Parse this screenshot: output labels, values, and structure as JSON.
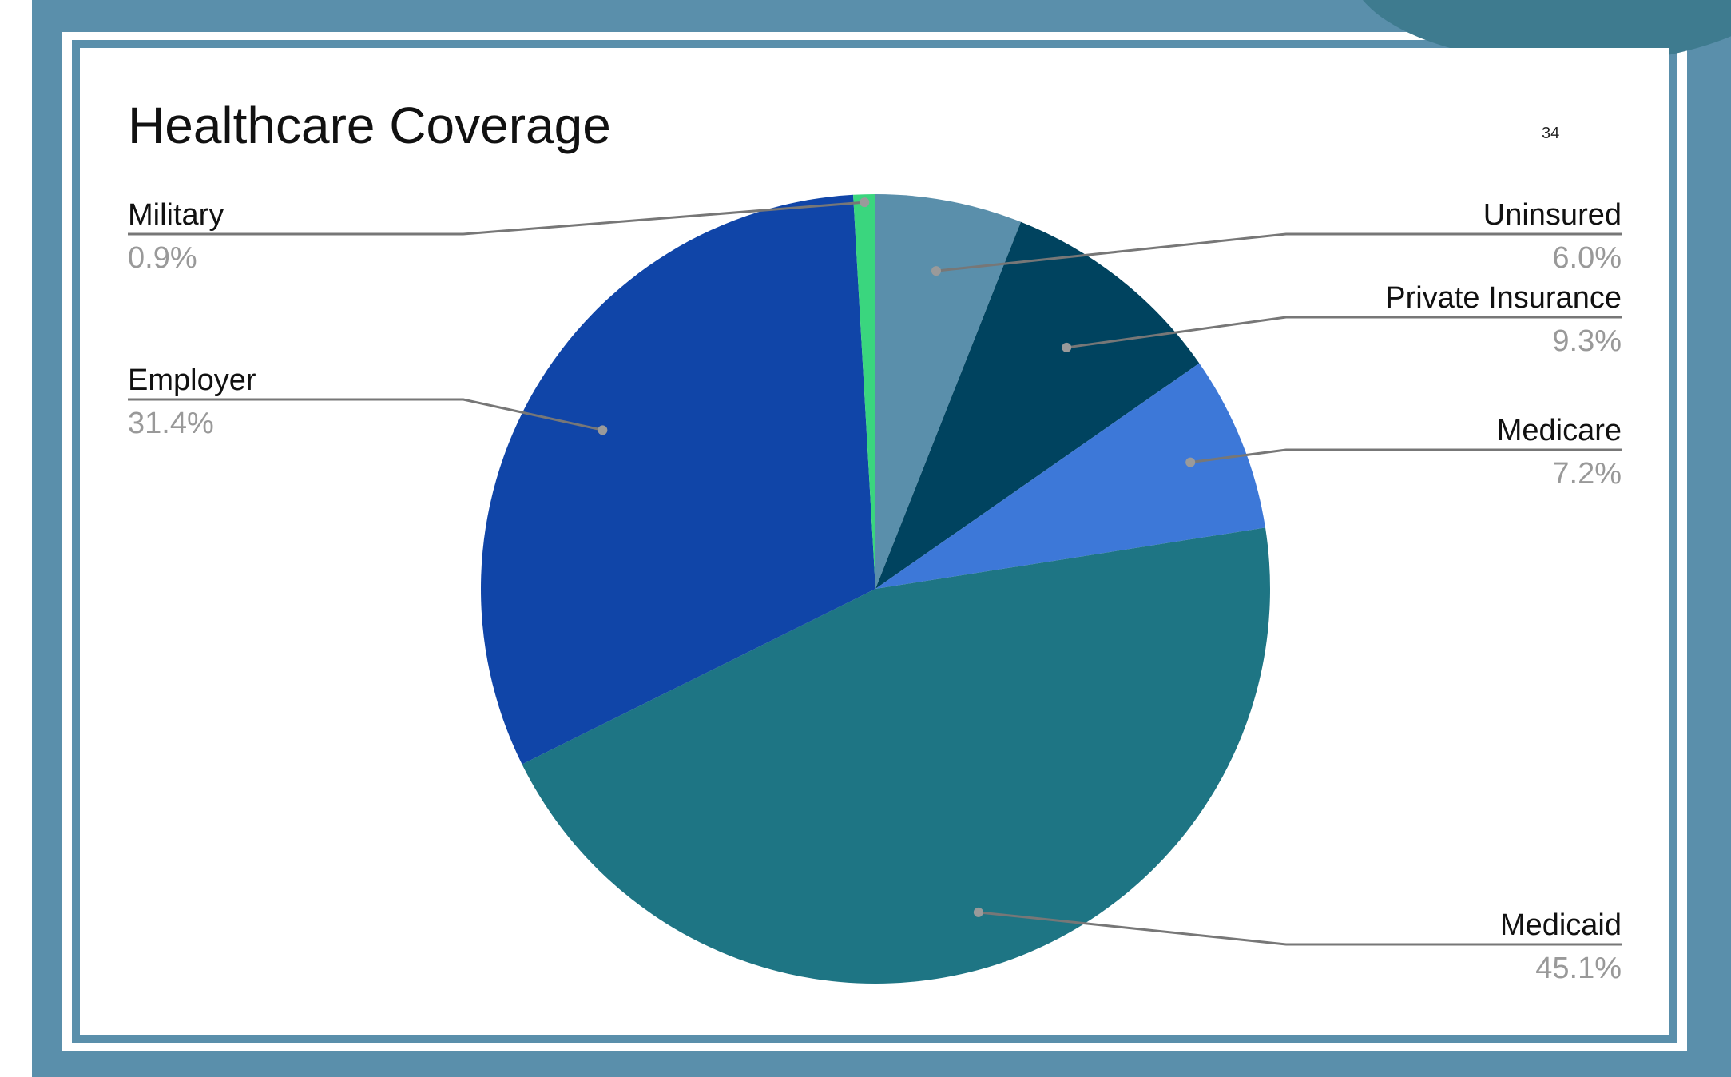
{
  "slide": {
    "page_number": "34"
  },
  "chart_data": {
    "type": "pie",
    "title": "Healthcare Coverage",
    "slices": [
      {
        "label": "Uninsured",
        "value": 6.0,
        "display": "6.0%",
        "color": "#5a8fab"
      },
      {
        "label": "Private Insurance",
        "value": 9.3,
        "display": "9.3%",
        "color": "#00435f"
      },
      {
        "label": "Medicare",
        "value": 7.2,
        "display": "7.2%",
        "color": "#3d78d8"
      },
      {
        "label": "Medicaid",
        "value": 45.1,
        "display": "45.1%",
        "color": "#1e7584"
      },
      {
        "label": "Employer",
        "value": 31.4,
        "display": "31.4%",
        "color": "#1045a8"
      },
      {
        "label": "Military",
        "value": 0.9,
        "display": "0.9%",
        "color": "#3ad67e"
      }
    ],
    "start_angle": "12 o'clock",
    "direction": "clockwise",
    "legend": "none (external callout labels)",
    "label_color": "#111111",
    "value_color": "#999999",
    "leader_color": "#777777"
  }
}
